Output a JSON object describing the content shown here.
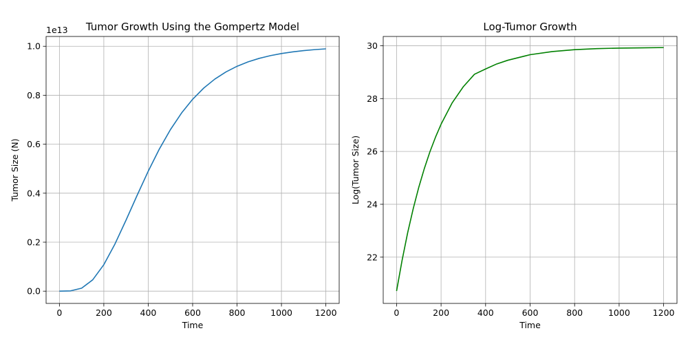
{
  "chart_data": [
    {
      "type": "line",
      "title": "Tumor Growth Using the Gompertz Model",
      "xlabel": "Time",
      "ylabel": "Tumor Size (N)",
      "offset_text": "1e13",
      "xlim": [
        -60,
        1260
      ],
      "ylim": [
        -0.05,
        1.04
      ],
      "xticks": [
        0,
        200,
        400,
        600,
        800,
        1000,
        1200
      ],
      "xtick_labels": [
        "0",
        "200",
        "400",
        "600",
        "800",
        "1000",
        "1200"
      ],
      "yticks": [
        0.0,
        0.2,
        0.4,
        0.6,
        0.8,
        1.0
      ],
      "ytick_labels": [
        "0.0",
        "0.2",
        "0.4",
        "0.6",
        "0.8",
        "1.0"
      ],
      "grid": true,
      "color": "#1f77b4",
      "series": [
        {
          "x": [
            0,
            50,
            100,
            150,
            200,
            250,
            300,
            350,
            400,
            450,
            500,
            550,
            600,
            650,
            700,
            750,
            800,
            850,
            900,
            950,
            1000,
            1050,
            1100,
            1150,
            1200
          ],
          "y": [
            0.0001,
            0.0012,
            0.0121,
            0.0464,
            0.1082,
            0.1924,
            0.2899,
            0.3914,
            0.4898,
            0.5802,
            0.6597,
            0.7274,
            0.7836,
            0.8293,
            0.866,
            0.8952,
            0.9183,
            0.9364,
            0.9506,
            0.9617,
            0.9703,
            0.977,
            0.9822,
            0.9863,
            0.9894
          ]
        }
      ]
    },
    {
      "type": "line",
      "title": "Log-Tumor Growth",
      "xlabel": "Time",
      "ylabel": "Log(Tumor Size)",
      "xlim": [
        -60,
        1260
      ],
      "ylim": [
        20.25,
        30.35
      ],
      "xticks": [
        0,
        200,
        400,
        600,
        800,
        1000,
        1200
      ],
      "xtick_labels": [
        "0",
        "200",
        "400",
        "600",
        "800",
        "1000",
        "1200"
      ],
      "yticks": [
        22,
        24,
        26,
        28,
        30
      ],
      "ytick_labels": [
        "22",
        "24",
        "26",
        "28",
        "30"
      ],
      "grid": true,
      "color": "#008000",
      "series": [
        {
          "x": [
            0,
            25,
            50,
            75,
            100,
            125,
            150,
            175,
            200,
            250,
            300,
            350,
            400,
            450,
            500,
            600,
            700,
            800,
            900,
            1000,
            1100,
            1200
          ],
          "y": [
            20.72,
            21.89,
            22.93,
            23.84,
            24.65,
            25.36,
            25.99,
            26.54,
            27.03,
            27.84,
            28.45,
            28.92,
            29.12,
            29.31,
            29.45,
            29.66,
            29.78,
            29.85,
            29.89,
            29.91,
            29.92,
            29.93
          ]
        }
      ]
    }
  ]
}
